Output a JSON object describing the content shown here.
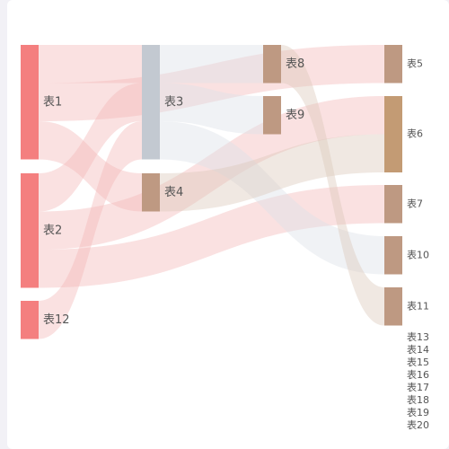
{
  "chart_data": {
    "type": "sankey",
    "nodes": [
      {
        "id": "表1",
        "label": "表1",
        "column": 0,
        "value": 3
      },
      {
        "id": "表2",
        "label": "表2",
        "column": 0,
        "value": 3
      },
      {
        "id": "表12",
        "label": "表12",
        "column": 0,
        "value": 1
      },
      {
        "id": "表3",
        "label": "表3",
        "column": 1,
        "value": 3
      },
      {
        "id": "表4",
        "label": "表4",
        "column": 1,
        "value": 1
      },
      {
        "id": "表8",
        "label": "表8",
        "column": 2,
        "value": 1
      },
      {
        "id": "表9",
        "label": "表9",
        "column": 2,
        "value": 1
      },
      {
        "id": "表5",
        "label": "表5",
        "column": 3,
        "value": 1
      },
      {
        "id": "表6",
        "label": "表6",
        "column": 3,
        "value": 2
      },
      {
        "id": "表7",
        "label": "表7",
        "column": 3,
        "value": 1
      },
      {
        "id": "表10",
        "label": "表10",
        "column": 3,
        "value": 1
      },
      {
        "id": "表11",
        "label": "表11",
        "column": 3,
        "value": 1
      }
    ],
    "links": [
      {
        "source": "表1",
        "target": "表3",
        "value": 1
      },
      {
        "source": "表1",
        "target": "表5",
        "value": 1
      },
      {
        "source": "表1",
        "target": "表4",
        "value": 1
      },
      {
        "source": "表2",
        "target": "表3",
        "value": 1
      },
      {
        "source": "表2",
        "target": "表6",
        "value": 1
      },
      {
        "source": "表2",
        "target": "表7",
        "value": 1
      },
      {
        "source": "表12",
        "target": "表3",
        "value": 1
      },
      {
        "source": "表3",
        "target": "表8",
        "value": 1
      },
      {
        "source": "表3",
        "target": "表9",
        "value": 1
      },
      {
        "source": "表3",
        "target": "表10",
        "value": 1
      },
      {
        "source": "表4",
        "target": "表6",
        "value": 1
      },
      {
        "source": "表8",
        "target": "表11",
        "value": 1
      }
    ],
    "unplaced_labels": [
      "表13",
      "表14",
      "表15",
      "表16",
      "表17",
      "表18",
      "表19",
      "表20"
    ]
  },
  "colors": {
    "background": "#f2f1f6",
    "card": "#ffffff",
    "source_nodes": "#f47f7f",
    "hub_node": "#c3c9d1",
    "tan_nodes": "#be9982",
    "table6_node": "#c39b74",
    "source_links": "#f4b7b7",
    "hub_links": "#dde2e8",
    "tan_links": "#dcc9bb",
    "label": "#555555"
  }
}
